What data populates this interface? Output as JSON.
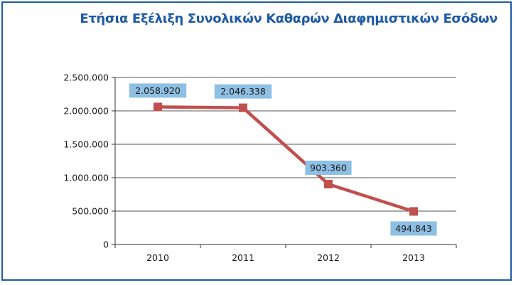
{
  "chart_data": {
    "type": "line",
    "title": "Ετήσια Εξέλιξη Συνολικών Καθαρών Διαφημιστικών Εσόδων",
    "xlabel": "",
    "ylabel": "",
    "categories": [
      "2010",
      "2011",
      "2012",
      "2013"
    ],
    "series": [
      {
        "values": [
          2058920,
          2046338,
          903360,
          494843
        ],
        "labels": [
          "2.058.920",
          "2.046.338",
          "903.360",
          "494.843"
        ]
      }
    ],
    "ylim": [
      0,
      2500000
    ],
    "yticks": [
      0,
      500000,
      1000000,
      1500000,
      2000000,
      2500000
    ],
    "ytick_labels": [
      "0",
      "500.000",
      "1.000.000",
      "1.500.000",
      "2.000.000",
      "2.500.000"
    ],
    "grid": true,
    "legend": "none",
    "colors": {
      "line": "#c0504d",
      "label_box": "#8ec0e4",
      "title": "#1f5aa8",
      "frame": "#1f5aa8",
      "grid": "#555555"
    }
  }
}
